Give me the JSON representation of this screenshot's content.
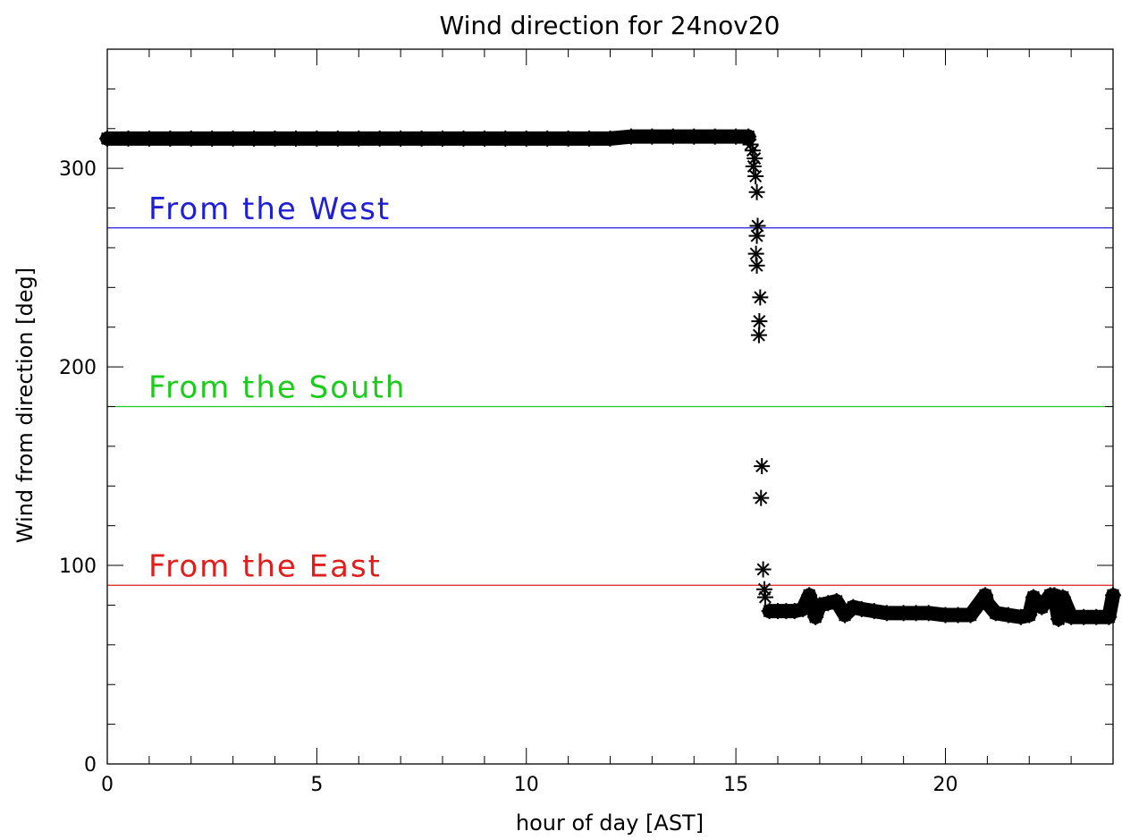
{
  "chart_data": {
    "type": "scatter",
    "title": "Wind direction for 24nov20",
    "xlabel": "hour of day [AST]",
    "ylabel": "Wind from direction [deg]",
    "xlim": [
      0,
      24
    ],
    "ylim": [
      0,
      360
    ],
    "x_ticks": [
      0,
      5,
      10,
      15,
      20
    ],
    "y_ticks": [
      0,
      100,
      200,
      300
    ],
    "x_minor_step": 1,
    "y_minor_step": 20,
    "grid": false,
    "marker": "asterisk",
    "series": [
      {
        "color": "#000000",
        "points": [
          [
            0.0,
            315
          ],
          [
            0.5,
            315
          ],
          [
            1.0,
            315
          ],
          [
            1.5,
            315
          ],
          [
            2.0,
            315
          ],
          [
            2.5,
            315
          ],
          [
            3.0,
            315
          ],
          [
            3.5,
            315
          ],
          [
            4.0,
            315
          ],
          [
            4.5,
            315
          ],
          [
            5.0,
            315
          ],
          [
            5.5,
            315
          ],
          [
            6.0,
            315
          ],
          [
            6.5,
            315
          ],
          [
            7.0,
            315
          ],
          [
            7.5,
            315
          ],
          [
            8.0,
            315
          ],
          [
            8.5,
            315
          ],
          [
            9.0,
            315
          ],
          [
            9.5,
            315
          ],
          [
            10.0,
            315
          ],
          [
            10.5,
            315
          ],
          [
            11.0,
            315
          ],
          [
            11.5,
            315
          ],
          [
            12.0,
            315
          ],
          [
            12.5,
            316
          ],
          [
            13.0,
            316
          ],
          [
            13.5,
            316
          ],
          [
            14.0,
            316
          ],
          [
            14.5,
            316
          ],
          [
            15.0,
            316
          ],
          [
            15.3,
            316
          ],
          [
            15.35,
            312
          ],
          [
            15.4,
            309
          ],
          [
            15.45,
            305
          ],
          [
            15.42,
            301
          ],
          [
            15.47,
            296
          ],
          [
            15.5,
            288
          ],
          [
            15.52,
            271
          ],
          [
            15.5,
            266
          ],
          [
            15.48,
            257
          ],
          [
            15.5,
            251
          ],
          [
            15.58,
            235
          ],
          [
            15.56,
            223
          ],
          [
            15.55,
            216
          ],
          [
            15.62,
            150
          ],
          [
            15.6,
            134
          ],
          [
            15.65,
            98
          ],
          [
            15.68,
            88
          ],
          [
            15.7,
            84
          ],
          [
            15.8,
            77
          ],
          [
            16.0,
            77
          ],
          [
            16.2,
            77
          ],
          [
            16.4,
            77
          ],
          [
            16.6,
            78
          ],
          [
            16.75,
            85
          ],
          [
            16.9,
            74
          ],
          [
            17.0,
            80
          ],
          [
            17.2,
            81
          ],
          [
            17.4,
            82
          ],
          [
            17.6,
            75
          ],
          [
            17.8,
            79
          ],
          [
            18.0,
            78
          ],
          [
            18.3,
            77
          ],
          [
            18.6,
            76
          ],
          [
            19.0,
            76
          ],
          [
            19.3,
            76
          ],
          [
            19.6,
            76
          ],
          [
            20.0,
            75
          ],
          [
            20.3,
            75
          ],
          [
            20.6,
            75
          ],
          [
            20.95,
            85
          ],
          [
            21.0,
            81
          ],
          [
            21.2,
            76
          ],
          [
            21.5,
            75
          ],
          [
            21.8,
            74
          ],
          [
            22.0,
            75
          ],
          [
            22.1,
            84
          ],
          [
            22.3,
            79
          ],
          [
            22.5,
            85
          ],
          [
            22.6,
            85
          ],
          [
            22.7,
            73
          ],
          [
            22.8,
            84
          ],
          [
            23.0,
            74
          ],
          [
            23.3,
            74
          ],
          [
            23.6,
            74
          ],
          [
            23.9,
            74
          ],
          [
            24.0,
            85
          ]
        ]
      }
    ],
    "reference_lines": [
      {
        "y": 270,
        "label": "From the West",
        "color": "#1f1fd6"
      },
      {
        "y": 180,
        "label": "From the South",
        "color": "#1ccc1c"
      },
      {
        "y": 90,
        "label": "From the East",
        "color": "#e01e1e"
      }
    ]
  }
}
